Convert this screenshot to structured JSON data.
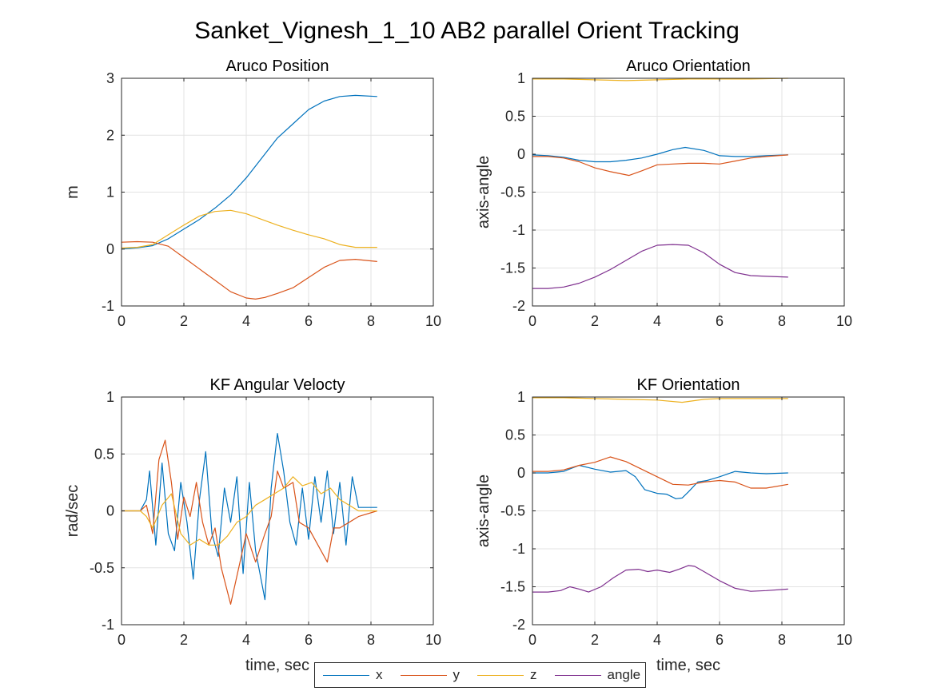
{
  "figure_title": "Sanket_Vignesh_1_10 AB2 parallel Orient Tracking",
  "colors": {
    "x": "#0072BD",
    "y": "#D95319",
    "z": "#EDB120",
    "angle": "#7E2F8E"
  },
  "legend": [
    {
      "name": "x",
      "color": "#0072BD"
    },
    {
      "name": "y",
      "color": "#D95319"
    },
    {
      "name": "z",
      "color": "#EDB120"
    },
    {
      "name": "angle",
      "color": "#7E2F8E"
    }
  ],
  "chart_data": [
    {
      "type": "line",
      "title": "Aruco Position",
      "xlabel": "",
      "ylabel": "m",
      "xlim": [
        0,
        10
      ],
      "ylim": [
        -1,
        3
      ],
      "xticks": [
        0,
        2,
        4,
        6,
        8,
        10
      ],
      "yticks": [
        -1,
        0,
        1,
        2,
        3
      ],
      "grid": true,
      "series": [
        {
          "key": "x",
          "x": [
            0,
            0.5,
            1,
            1.5,
            2,
            2.5,
            3,
            3.5,
            4,
            4.5,
            5,
            5.5,
            6,
            6.5,
            7,
            7.5,
            8.2
          ],
          "y": [
            0,
            0.02,
            0.06,
            0.18,
            0.35,
            0.52,
            0.72,
            0.95,
            1.25,
            1.6,
            1.95,
            2.2,
            2.45,
            2.6,
            2.68,
            2.7,
            2.68
          ]
        },
        {
          "key": "y",
          "x": [
            0,
            0.5,
            1,
            1.5,
            2,
            2.5,
            3,
            3.5,
            4,
            4.3,
            4.6,
            5,
            5.5,
            6,
            6.5,
            7,
            7.5,
            8.2
          ],
          "y": [
            0.12,
            0.13,
            0.12,
            0.05,
            -0.15,
            -0.35,
            -0.55,
            -0.75,
            -0.86,
            -0.88,
            -0.85,
            -0.78,
            -0.68,
            -0.5,
            -0.32,
            -0.2,
            -0.18,
            -0.22
          ]
        },
        {
          "key": "z",
          "x": [
            0,
            0.5,
            1,
            1.5,
            2,
            2.5,
            3,
            3.5,
            4,
            4.5,
            5,
            5.5,
            6,
            6.5,
            7,
            7.5,
            8.2
          ],
          "y": [
            0.02,
            0.03,
            0.08,
            0.25,
            0.42,
            0.58,
            0.66,
            0.68,
            0.62,
            0.52,
            0.42,
            0.33,
            0.25,
            0.18,
            0.08,
            0.03,
            0.03
          ]
        }
      ]
    },
    {
      "type": "line",
      "title": "Aruco Orientation",
      "xlabel": "",
      "ylabel": "axis-angle",
      "xlim": [
        0,
        10
      ],
      "ylim": [
        -2,
        1
      ],
      "xticks": [
        0,
        2,
        4,
        6,
        8,
        10
      ],
      "yticks": [
        -2,
        -1.5,
        -1,
        -0.5,
        0,
        0.5,
        1
      ],
      "grid": true,
      "series": [
        {
          "key": "x",
          "x": [
            0,
            0.5,
            1,
            1.5,
            2,
            2.5,
            3,
            3.5,
            4,
            4.5,
            4.9,
            5.5,
            6,
            6.5,
            7,
            7.5,
            8.2
          ],
          "y": [
            -0.01,
            -0.02,
            -0.04,
            -0.08,
            -0.1,
            -0.1,
            -0.08,
            -0.05,
            0,
            0.06,
            0.09,
            0.05,
            -0.02,
            -0.03,
            -0.03,
            -0.02,
            -0.01
          ]
        },
        {
          "key": "y",
          "x": [
            0,
            0.5,
            1,
            1.5,
            2,
            2.5,
            3.1,
            3.5,
            4,
            4.5,
            5,
            5.5,
            6,
            6.5,
            7,
            7.5,
            8.2
          ],
          "y": [
            -0.03,
            -0.03,
            -0.05,
            -0.1,
            -0.18,
            -0.23,
            -0.28,
            -0.22,
            -0.14,
            -0.13,
            -0.12,
            -0.12,
            -0.13,
            -0.09,
            -0.05,
            -0.03,
            -0.01
          ]
        },
        {
          "key": "z",
          "x": [
            0,
            1,
            2,
            3,
            4,
            5,
            6,
            7,
            8.2
          ],
          "y": [
            0.99,
            0.99,
            0.98,
            0.97,
            0.98,
            0.99,
            0.99,
            0.99,
            1
          ]
        },
        {
          "key": "angle",
          "x": [
            0,
            0.5,
            1,
            1.5,
            2,
            2.5,
            3,
            3.5,
            4,
            4.5,
            5,
            5.5,
            6,
            6.5,
            7,
            7.5,
            8.2
          ],
          "y": [
            -1.77,
            -1.77,
            -1.75,
            -1.7,
            -1.62,
            -1.52,
            -1.4,
            -1.28,
            -1.2,
            -1.19,
            -1.2,
            -1.3,
            -1.45,
            -1.56,
            -1.6,
            -1.61,
            -1.62
          ]
        }
      ]
    },
    {
      "type": "line",
      "title": "KF Angular Velocty",
      "xlabel": "time, sec",
      "ylabel": "rad/sec",
      "xlim": [
        0,
        10
      ],
      "ylim": [
        -1,
        1
      ],
      "xticks": [
        0,
        2,
        4,
        6,
        8,
        10
      ],
      "yticks": [
        -1,
        -0.5,
        0,
        0.5,
        1
      ],
      "grid": true,
      "series": [
        {
          "key": "x",
          "x": [
            0,
            0.6,
            0.8,
            0.9,
            1.1,
            1.3,
            1.5,
            1.7,
            1.9,
            2.1,
            2.3,
            2.5,
            2.7,
            2.9,
            3.1,
            3.3,
            3.5,
            3.7,
            3.9,
            4.1,
            4.3,
            4.6,
            4.8,
            5.0,
            5.2,
            5.4,
            5.6,
            5.8,
            6.0,
            6.2,
            6.4,
            6.6,
            6.8,
            7.0,
            7.2,
            7.4,
            7.6,
            8.2
          ],
          "y": [
            0,
            0,
            0.1,
            0.35,
            -0.3,
            0.42,
            -0.2,
            -0.35,
            0.25,
            -0.1,
            -0.6,
            0.1,
            0.52,
            -0.2,
            -0.4,
            0.2,
            -0.1,
            0.3,
            -0.55,
            0.25,
            -0.35,
            -0.78,
            0.2,
            0.68,
            0.35,
            -0.1,
            -0.3,
            0.2,
            -0.25,
            0.3,
            -0.1,
            0.35,
            -0.2,
            0.25,
            -0.3,
            0.3,
            0.03,
            0.03
          ]
        },
        {
          "key": "y",
          "x": [
            0,
            0.6,
            0.8,
            1.0,
            1.2,
            1.4,
            1.6,
            1.8,
            2.0,
            2.2,
            2.4,
            2.6,
            2.8,
            3.0,
            3.2,
            3.5,
            3.8,
            4.0,
            4.3,
            4.6,
            4.8,
            5.0,
            5.2,
            5.5,
            5.7,
            6.0,
            6.3,
            6.6,
            6.8,
            7.0,
            7.3,
            7.6,
            8.2
          ],
          "y": [
            0,
            0,
            0.05,
            -0.2,
            0.45,
            0.62,
            0.25,
            -0.25,
            0.12,
            -0.05,
            0.25,
            -0.1,
            -0.3,
            -0.15,
            -0.5,
            -0.82,
            -0.45,
            -0.2,
            -0.45,
            -0.2,
            -0.05,
            0.35,
            0.2,
            0.25,
            -0.1,
            -0.15,
            -0.3,
            -0.45,
            -0.15,
            -0.15,
            -0.1,
            -0.05,
            0
          ]
        },
        {
          "key": "z",
          "x": [
            0,
            0.6,
            0.8,
            1.0,
            1.3,
            1.6,
            1.9,
            2.2,
            2.5,
            2.8,
            3.1,
            3.4,
            3.7,
            4.0,
            4.3,
            4.6,
            4.9,
            5.2,
            5.5,
            5.8,
            6.1,
            6.4,
            6.7,
            7.0,
            7.3,
            7.6,
            8.2
          ],
          "y": [
            0,
            0,
            -0.05,
            -0.15,
            0.05,
            0.15,
            -0.2,
            -0.3,
            -0.25,
            -0.3,
            -0.3,
            -0.22,
            -0.1,
            -0.05,
            0.05,
            0.1,
            0.15,
            0.2,
            0.3,
            0.22,
            0.25,
            0.15,
            0.2,
            0.1,
            0.05,
            0,
            0
          ]
        },
        {
          "key": "angle",
          "x": [],
          "y": []
        }
      ]
    },
    {
      "type": "line",
      "title": "KF Orientation",
      "xlabel": "time, sec",
      "ylabel": "axis-angle",
      "xlim": [
        0,
        10
      ],
      "ylim": [
        -2,
        1
      ],
      "xticks": [
        0,
        2,
        4,
        6,
        8,
        10
      ],
      "yticks": [
        -2,
        -1.5,
        -1,
        -0.5,
        0,
        0.5,
        1
      ],
      "grid": true,
      "series": [
        {
          "key": "x",
          "x": [
            0,
            0.5,
            1,
            1.5,
            2,
            2.5,
            3,
            3.3,
            3.6,
            4,
            4.3,
            4.6,
            4.8,
            5,
            5.3,
            5.6,
            6,
            6.5,
            7,
            7.5,
            8.2
          ],
          "y": [
            0,
            0,
            0.02,
            0.1,
            0.05,
            0.01,
            0.03,
            -0.05,
            -0.22,
            -0.27,
            -0.28,
            -0.34,
            -0.33,
            -0.25,
            -0.12,
            -0.1,
            -0.05,
            0.02,
            0,
            -0.01,
            0
          ]
        },
        {
          "key": "y",
          "x": [
            0,
            0.5,
            1,
            1.5,
            2,
            2.5,
            3,
            3.5,
            4,
            4.5,
            5,
            5.5,
            6,
            6.5,
            7,
            7.5,
            8.2
          ],
          "y": [
            0.02,
            0.02,
            0.04,
            0.1,
            0.14,
            0.21,
            0.15,
            0.05,
            -0.05,
            -0.15,
            -0.16,
            -0.12,
            -0.1,
            -0.12,
            -0.2,
            -0.2,
            -0.15
          ]
        },
        {
          "key": "z",
          "x": [
            0,
            1,
            2,
            3,
            4,
            4.8,
            5.5,
            6,
            7,
            8.2
          ],
          "y": [
            0.99,
            0.99,
            0.98,
            0.97,
            0.96,
            0.93,
            0.97,
            0.98,
            0.98,
            0.98
          ]
        },
        {
          "key": "angle",
          "x": [
            0,
            0.5,
            0.9,
            1.2,
            1.5,
            1.8,
            2.2,
            2.6,
            3,
            3.4,
            3.7,
            4,
            4.4,
            4.7,
            5,
            5.2,
            5.5,
            6,
            6.5,
            7,
            7.5,
            8.2
          ],
          "y": [
            -1.57,
            -1.57,
            -1.55,
            -1.5,
            -1.53,
            -1.57,
            -1.5,
            -1.38,
            -1.28,
            -1.27,
            -1.3,
            -1.28,
            -1.31,
            -1.27,
            -1.22,
            -1.23,
            -1.3,
            -1.42,
            -1.52,
            -1.56,
            -1.55,
            -1.53
          ]
        }
      ]
    }
  ]
}
